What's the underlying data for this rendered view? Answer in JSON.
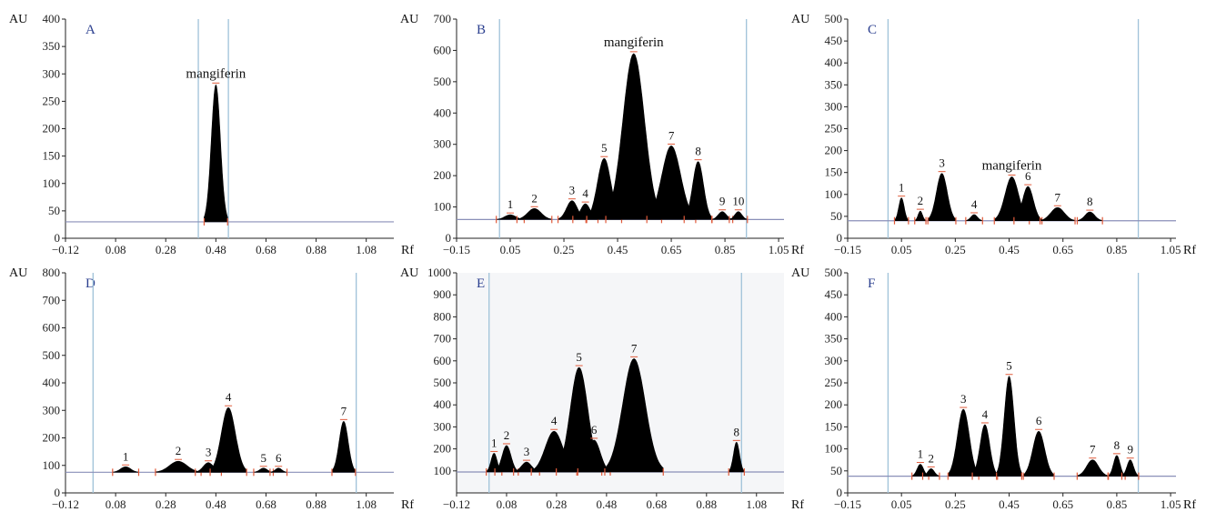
{
  "chart_data": [
    {
      "panel": "A",
      "type": "area",
      "xlabel": "Rf",
      "ylabel": "AU",
      "xticks": [
        "−0.12",
        "0.08",
        "0.28",
        "0.48",
        "0.68",
        "0.88",
        "1.08"
      ],
      "xlim": [
        -0.12,
        1.19
      ],
      "ylim": [
        0,
        400
      ],
      "yticks": [
        "0",
        "50",
        "100",
        "150",
        "200",
        "250",
        "300",
        "350",
        "400"
      ],
      "baseline": 30,
      "vlines": [
        0.41,
        0.53
      ],
      "peaks": [
        {
          "label": "mangiferin",
          "x": 0.48,
          "height": 280,
          "width": 0.018
        }
      ]
    },
    {
      "panel": "B",
      "type": "area",
      "xlabel": "Rf",
      "ylabel": "AU",
      "xticks": [
        "−0.15",
        "0.05",
        "0.25",
        "0.45",
        "0.65",
        "0.85",
        "1.05"
      ],
      "xlim": [
        -0.15,
        1.07
      ],
      "ylim": [
        0,
        700
      ],
      "yticks": [
        "0",
        "100",
        "200",
        "300",
        "400",
        "500",
        "600",
        "700"
      ],
      "baseline": 60,
      "vlines": [
        0.01,
        0.93
      ],
      "peaks": [
        {
          "label": "1",
          "x": 0.05,
          "height": 75,
          "width": 0.02
        },
        {
          "label": "2",
          "x": 0.14,
          "height": 95,
          "width": 0.025
        },
        {
          "label": "3",
          "x": 0.28,
          "height": 120,
          "width": 0.02
        },
        {
          "label": "4",
          "x": 0.33,
          "height": 110,
          "width": 0.018
        },
        {
          "label": "5",
          "x": 0.4,
          "height": 255,
          "width": 0.025
        },
        {
          "label": "mangiferin",
          "x": 0.51,
          "height": 590,
          "width": 0.04
        },
        {
          "label": "7",
          "x": 0.65,
          "height": 295,
          "width": 0.035
        },
        {
          "label": "8",
          "x": 0.75,
          "height": 245,
          "width": 0.02
        },
        {
          "label": "9",
          "x": 0.84,
          "height": 85,
          "width": 0.015
        },
        {
          "label": "10",
          "x": 0.9,
          "height": 85,
          "width": 0.013
        }
      ]
    },
    {
      "panel": "C",
      "type": "area",
      "xlabel": "Rf",
      "ylabel": "AU",
      "xticks": [
        "−0.15",
        "0.05",
        "0.25",
        "0.45",
        "0.65",
        "0.85",
        "1.05"
      ],
      "xlim": [
        -0.15,
        1.07
      ],
      "ylim": [
        0,
        500
      ],
      "yticks": [
        "0",
        "50",
        "100",
        "150",
        "200",
        "250",
        "300",
        "350",
        "400",
        "450",
        "500"
      ],
      "baseline": 40,
      "vlines": [
        0.0,
        0.93
      ],
      "peaks": [
        {
          "label": "1",
          "x": 0.05,
          "height": 92,
          "width": 0.01
        },
        {
          "label": "2",
          "x": 0.12,
          "height": 62,
          "width": 0.008
        },
        {
          "label": "3",
          "x": 0.2,
          "height": 148,
          "width": 0.02
        },
        {
          "label": "4",
          "x": 0.32,
          "height": 54,
          "width": 0.012
        },
        {
          "label": "mangiferin",
          "x": 0.46,
          "height": 140,
          "width": 0.025
        },
        {
          "label": "6",
          "x": 0.52,
          "height": 118,
          "width": 0.02
        },
        {
          "label": "7",
          "x": 0.63,
          "height": 70,
          "width": 0.025
        },
        {
          "label": "8",
          "x": 0.75,
          "height": 60,
          "width": 0.018
        }
      ]
    },
    {
      "panel": "D",
      "type": "area",
      "xlabel": "Rf",
      "ylabel": "AU",
      "xticks": [
        "−0.12",
        "0.08",
        "0.28",
        "0.48",
        "0.68",
        "0.88",
        "1.08"
      ],
      "xlim": [
        -0.12,
        1.19
      ],
      "ylim": [
        0,
        800
      ],
      "yticks": [
        "0",
        "100",
        "200",
        "300",
        "400",
        "500",
        "600",
        "700",
        "800"
      ],
      "baseline": 75,
      "vlines": [
        -0.01,
        1.04
      ],
      "peaks": [
        {
          "label": "1",
          "x": 0.12,
          "height": 95,
          "width": 0.02
        },
        {
          "label": "2",
          "x": 0.33,
          "height": 115,
          "width": 0.035
        },
        {
          "label": "3",
          "x": 0.45,
          "height": 110,
          "width": 0.02
        },
        {
          "label": "4",
          "x": 0.53,
          "height": 310,
          "width": 0.028
        },
        {
          "label": "5",
          "x": 0.67,
          "height": 90,
          "width": 0.015
        },
        {
          "label": "6",
          "x": 0.73,
          "height": 90,
          "width": 0.013
        },
        {
          "label": "7",
          "x": 0.99,
          "height": 260,
          "width": 0.018
        }
      ]
    },
    {
      "panel": "E",
      "type": "area",
      "xlabel": "Rf",
      "ylabel": "AU",
      "xticks": [
        "−0.12",
        "0.08",
        "0.28",
        "0.48",
        "0.68",
        "0.88",
        "1.08"
      ],
      "xlim": [
        -0.12,
        1.19
      ],
      "ylim": [
        0,
        1000
      ],
      "yticks": [
        "100",
        "200",
        "300",
        "400",
        "500",
        "600",
        "700",
        "800",
        "900",
        "1000"
      ],
      "baseline": 95,
      "vlines": [
        0.01,
        1.02
      ],
      "peaks": [
        {
          "label": "1",
          "x": 0.03,
          "height": 180,
          "width": 0.012
        },
        {
          "label": "2",
          "x": 0.08,
          "height": 215,
          "width": 0.018
        },
        {
          "label": "3",
          "x": 0.16,
          "height": 140,
          "width": 0.02
        },
        {
          "label": "4",
          "x": 0.27,
          "height": 280,
          "width": 0.035
        },
        {
          "label": "5",
          "x": 0.37,
          "height": 570,
          "width": 0.035
        },
        {
          "label": "6",
          "x": 0.43,
          "height": 240,
          "width": 0.025
        },
        {
          "label": "7",
          "x": 0.59,
          "height": 610,
          "width": 0.045
        },
        {
          "label": "8",
          "x": 1.0,
          "height": 230,
          "width": 0.012
        }
      ]
    },
    {
      "panel": "F",
      "type": "area",
      "xlabel": "Rf",
      "ylabel": "AU",
      "xticks": [
        "−0.15",
        "0.05",
        "0.25",
        "0.45",
        "0.65",
        "0.85",
        "1.05"
      ],
      "xlim": [
        -0.15,
        1.07
      ],
      "ylim": [
        0,
        500
      ],
      "yticks": [
        "0",
        "50",
        "100",
        "150",
        "200",
        "250",
        "300",
        "350",
        "400",
        "450",
        "500"
      ],
      "baseline": 38,
      "vlines": [
        0.0,
        0.93
      ],
      "peaks": [
        {
          "label": "1",
          "x": 0.12,
          "height": 65,
          "width": 0.012
        },
        {
          "label": "2",
          "x": 0.16,
          "height": 55,
          "width": 0.012
        },
        {
          "label": "3",
          "x": 0.28,
          "height": 190,
          "width": 0.022
        },
        {
          "label": "4",
          "x": 0.36,
          "height": 155,
          "width": 0.018
        },
        {
          "label": "5",
          "x": 0.45,
          "height": 265,
          "width": 0.018
        },
        {
          "label": "6",
          "x": 0.56,
          "height": 140,
          "width": 0.022
        },
        {
          "label": "7",
          "x": 0.76,
          "height": 75,
          "width": 0.022
        },
        {
          "label": "8",
          "x": 0.85,
          "height": 85,
          "width": 0.012
        },
        {
          "label": "9",
          "x": 0.9,
          "height": 75,
          "width": 0.012
        }
      ]
    }
  ]
}
